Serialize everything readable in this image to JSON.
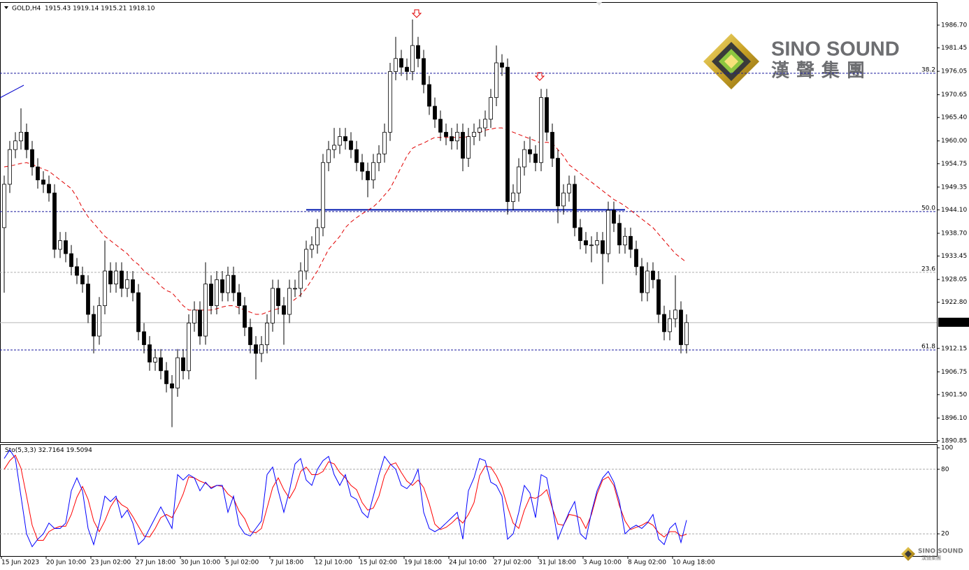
{
  "chart_data": [
    {
      "type": "candlestick",
      "title": "GOLD,H4",
      "header": "1915.43 1919.14 1915.21 1918.10",
      "categories": [
        "15 Jun 2023",
        null,
        null,
        null,
        null,
        null,
        null,
        null,
        "20 Jun 10:00",
        null,
        null,
        null,
        null,
        null,
        null,
        null,
        "23 Jun 02:00",
        null,
        null,
        null,
        null,
        null,
        null,
        null,
        "27 Jun 18:00",
        null,
        null,
        null,
        null,
        null,
        null,
        null,
        "30 Jun 10:00",
        null,
        null,
        null,
        null,
        null,
        null,
        null,
        "5 Jul 02:00",
        null,
        null,
        null,
        null,
        null,
        null,
        null,
        "7 Jul 18:00",
        null,
        null,
        null,
        null,
        null,
        null,
        null,
        "12 Jul 10:00",
        null,
        null,
        null,
        null,
        null,
        null,
        null,
        "15 Jul 02:00",
        null,
        null,
        null,
        null,
        null,
        null,
        null,
        "19 Jul 18:00",
        null,
        null,
        null,
        null,
        null,
        null,
        null,
        "24 Jul 10:00",
        null,
        null,
        null,
        null,
        null,
        null,
        null,
        "27 Jul 02:00",
        null,
        null,
        null,
        null,
        null,
        null,
        null,
        "31 Jul 18:00",
        null,
        null,
        null,
        null,
        null,
        null,
        null,
        "3 Aug 10:00",
        null,
        null,
        null,
        null,
        null,
        null,
        null,
        "8 Aug 02:00",
        null,
        null,
        null,
        null,
        null,
        null,
        null,
        "10 Aug 18:00",
        null,
        null
      ],
      "open": [
        1940,
        1950,
        1958,
        1960,
        1962,
        1958,
        1954,
        1951,
        1950,
        1948,
        1935,
        1937,
        1934,
        1931,
        1929,
        1927,
        1920,
        1915,
        1922,
        1930,
        1927,
        1930,
        1926,
        1928,
        1925,
        1916,
        1913,
        1909,
        1910,
        1907,
        1904,
        1903,
        1910,
        1907,
        1918,
        1921,
        1915,
        1927,
        1922,
        1928,
        1925,
        1929,
        1925,
        1922,
        1917,
        1913,
        1911,
        1913,
        1918,
        1926,
        1922,
        1920,
        1926,
        1926,
        1930,
        1935,
        1936,
        1940,
        1955,
        1958,
        1959,
        1961,
        1960,
        1958,
        1955,
        1953,
        1951,
        1955,
        1957,
        1962,
        1976,
        1979,
        1977,
        1976,
        1982,
        1979,
        1973,
        1968,
        1965,
        1962,
        1961,
        1960,
        1962,
        1956,
        1961,
        1962,
        1963,
        1965,
        1970,
        1978,
        1977,
        1946,
        1948,
        1954,
        1958,
        1957,
        1955,
        1970,
        1962,
        1956,
        1945,
        1948,
        1950,
        1940,
        1937,
        1936,
        1936,
        1937,
        1934,
        1944,
        1941,
        1936,
        1938,
        1935,
        1931,
        1925,
        1930,
        1928,
        1920,
        1916,
        1919,
        1921,
        1913
      ],
      "high": [
        1952,
        1960,
        1962,
        1967.5,
        1964,
        1960,
        1956,
        1953,
        1952,
        1950,
        1939,
        1939,
        1936,
        1933,
        1931,
        1929,
        1922,
        1924,
        1937,
        1932,
        1932,
        1932,
        1930,
        1930,
        1927,
        1918,
        1915,
        1912,
        1912,
        1909,
        1906,
        1912,
        1912,
        1920,
        1923,
        1923,
        1932,
        1929,
        1930,
        1930,
        1931,
        1931,
        1927,
        1924,
        1919,
        1915,
        1915,
        1920,
        1928,
        1928,
        1924,
        1928,
        1928,
        1932,
        1937,
        1938,
        1942,
        1957,
        1960,
        1963,
        1963,
        1963,
        1962,
        1960,
        1957,
        1955,
        1957,
        1959,
        1964,
        1978,
        1984,
        1981,
        1979,
        1988,
        1984,
        1981,
        1975,
        1970,
        1967,
        1964,
        1963,
        1964,
        1964,
        1963,
        1964,
        1965,
        1967,
        1972,
        1982,
        1980,
        1979,
        1950,
        1956,
        1960,
        1961,
        1959,
        1972,
        1972,
        1964,
        1958,
        1950,
        1952,
        1952,
        1942,
        1939,
        1938,
        1939,
        1939,
        1946,
        1946,
        1943,
        1940,
        1940,
        1937,
        1933,
        1932,
        1932,
        1930,
        1922,
        1921,
        1929,
        1923,
        1920
      ],
      "low": [
        1925,
        1948,
        1956,
        1958,
        1956,
        1952,
        1949,
        1948,
        1946,
        1933,
        1933,
        1932,
        1929,
        1927,
        1925,
        1918,
        1911,
        1913,
        1920,
        1925,
        1925,
        1924,
        1924,
        1923,
        1914,
        1911,
        1907,
        1907,
        1905,
        1902,
        1894,
        1901,
        1905,
        1905,
        1916,
        1913,
        1913,
        1920,
        1920,
        1923,
        1923,
        1923,
        1920,
        1915,
        1911,
        1905,
        1909,
        1911,
        1916,
        1920,
        1913,
        1918,
        1924,
        1924,
        1928,
        1933,
        1934,
        1938,
        1953,
        1956,
        1957,
        1958,
        1956,
        1953,
        1951,
        1947,
        1949,
        1953,
        1955,
        1960,
        1974,
        1975,
        1974,
        1974,
        1977,
        1971,
        1966,
        1963,
        1960,
        1959,
        1958,
        1958,
        1953,
        1954,
        1959,
        1960,
        1961,
        1963,
        1968,
        1975,
        1943,
        1944,
        1946,
        1952,
        1955,
        1953,
        1953,
        1960,
        1954,
        1941,
        1943,
        1946,
        1938,
        1935,
        1934,
        1932,
        1934,
        1927,
        1932,
        1939,
        1934,
        1934,
        1933,
        1929,
        1923,
        1923,
        1926,
        1918,
        1914,
        1914,
        1917,
        1911,
        1911
      ],
      "close": [
        1950,
        1958,
        1960,
        1962,
        1958,
        1954,
        1951,
        1950,
        1948,
        1935,
        1937,
        1934,
        1931,
        1929,
        1927,
        1920,
        1915,
        1922,
        1930,
        1927,
        1930,
        1926,
        1928,
        1925,
        1916,
        1913,
        1909,
        1910,
        1907,
        1904,
        1903,
        1910,
        1907,
        1918,
        1921,
        1915,
        1927,
        1922,
        1928,
        1925,
        1929,
        1925,
        1922,
        1917,
        1913,
        1911,
        1913,
        1918,
        1926,
        1922,
        1920,
        1926,
        1926,
        1930,
        1935,
        1936,
        1940,
        1955,
        1958,
        1959,
        1961,
        1960,
        1958,
        1955,
        1953,
        1951,
        1955,
        1957,
        1962,
        1976,
        1979,
        1977,
        1976,
        1982,
        1979,
        1973,
        1968,
        1965,
        1962,
        1961,
        1960,
        1962,
        1956,
        1961,
        1962,
        1963,
        1965,
        1970,
        1978,
        1977,
        1946,
        1948,
        1954,
        1958,
        1957,
        1955,
        1970,
        1962,
        1956,
        1945,
        1948,
        1950,
        1940,
        1937,
        1936,
        1936,
        1937,
        1934,
        1944,
        1941,
        1936,
        1938,
        1935,
        1931,
        1925,
        1930,
        1928,
        1920,
        1916,
        1919,
        1921,
        1913,
        1918.1
      ],
      "up_color": "#ffffff",
      "down_color": "#000000",
      "overlays": [
        {
          "color": "#e00000",
          "values": [
            1954,
            1954.2,
            1954.5,
            1954.8,
            1955,
            1954.6,
            1954,
            1953.5,
            1953,
            1952,
            1951,
            1950,
            1949,
            1947,
            1944.5,
            1942.5,
            1941,
            1939.5,
            1938,
            1937,
            1936,
            1935,
            1934,
            1932.5,
            1931.5,
            1930,
            1929,
            1928,
            1926.5,
            1925.5,
            1925,
            1923.5,
            1922,
            1921,
            1921,
            1921,
            1921,
            1921,
            1921.3,
            1921.7,
            1922,
            1922,
            1921.5,
            1921,
            1920.5,
            1920,
            1920,
            1920.5,
            1921,
            1921.3,
            1921.6,
            1922.5,
            1923.5,
            1924.5,
            1926,
            1928,
            1930,
            1932.5,
            1935,
            1936.5,
            1938,
            1940,
            1941.3,
            1942.3,
            1943.2,
            1944,
            1944.8,
            1946,
            1947.5,
            1949,
            1951.5,
            1954,
            1956.5,
            1958.3,
            1959,
            1959.5,
            1960.2,
            1960.8,
            1960.8,
            1960.8,
            1960.8,
            1960.8,
            1960.8,
            1961,
            1961.5,
            1962,
            1962.5,
            1962.7,
            1963,
            1963,
            1962.5,
            1962,
            1961.5,
            1961,
            1960.5,
            1960,
            1959.5,
            1959.7,
            1959.5,
            1958,
            1956.5,
            1954.5,
            1953.5,
            1952.5,
            1951.5,
            1950.5,
            1949.5,
            1948.5,
            1947.5,
            1946.5,
            1945.8,
            1945,
            1944,
            1943,
            1942,
            1941,
            1940,
            1938.5,
            1937,
            1935.5,
            1934,
            1933,
            1932
          ]
        }
      ],
      "ylim": [
        1890.53,
        1991.85
      ],
      "yticks": [
        {
          "value": 1986.7,
          "label": "1986.70"
        },
        1981.45,
        1976.05,
        1970.65,
        {
          "value": 1965.4,
          "label": "1965.40"
        },
        {
          "value": 1960,
          "label": "1960.00"
        },
        1954.75,
        1949.35,
        {
          "value": 1944.1,
          "label": "1944.10"
        },
        {
          "value": 1938.7,
          "label": "1938.70"
        },
        1933.45,
        1928.05,
        {
          "value": 1922.8,
          "label": "1922.80"
        },
        1912.15,
        1906.75,
        {
          "value": 1901.5,
          "label": "1901.50"
        },
        {
          "value": 1896.1,
          "label": "1896.10"
        },
        1890.85
      ],
      "levels": [
        {
          "label": "38.2",
          "value": 1975.6,
          "color": "#1a1a9c"
        },
        {
          "label": "50.0",
          "value": 1943.7,
          "color": "#1a1a9c"
        },
        {
          "label": "23.6",
          "value": 1929.7,
          "color": "#b0b0b0"
        },
        {
          "label": "61.8",
          "value": 1911.8,
          "color": "#1a1a9c"
        }
      ],
      "neckline": {
        "value": 1944.1,
        "x": [
          54,
          111
        ],
        "color": "#0018b0"
      },
      "last_price": {
        "value": 1918.1,
        "label": "1918.10"
      },
      "logo": {
        "name": "SINO SOUND",
        "chinese": "漢聲集團"
      }
    },
    {
      "type": "line",
      "title": "Sto(5,3,3)",
      "series": [
        {
          "color": "#0000ff",
          "values": [
            90,
            98,
            90,
            55,
            20,
            8,
            15,
            20,
            30,
            25,
            25,
            30,
            60,
            72,
            60,
            25,
            10,
            30,
            55,
            50,
            55,
            35,
            42,
            30,
            10,
            15,
            25,
            35,
            45,
            35,
            25,
            75,
            70,
            75,
            72,
            60,
            68,
            62,
            65,
            65,
            40,
            55,
            28,
            20,
            18,
            25,
            32,
            75,
            82,
            60,
            40,
            60,
            85,
            90,
            70,
            65,
            80,
            88,
            92,
            75,
            65,
            75,
            55,
            52,
            40,
            35,
            55,
            75,
            92,
            85,
            80,
            65,
            62,
            68,
            80,
            40,
            25,
            22,
            25,
            30,
            35,
            40,
            15,
            60,
            72,
            90,
            88,
            68,
            65,
            55,
            15,
            20,
            40,
            65,
            58,
            35,
            75,
            72,
            45,
            15,
            28,
            40,
            50,
            20,
            15,
            40,
            60,
            72,
            78,
            68,
            50,
            20,
            25,
            28,
            25,
            30,
            38,
            15,
            10,
            25,
            30,
            12,
            32.7164
          ]
        },
        {
          "color": "#ff0000",
          "values": [
            80,
            88,
            93,
            81,
            55,
            28,
            14,
            14,
            22,
            25,
            27,
            27,
            38,
            54,
            64,
            52,
            32,
            22,
            32,
            45,
            53,
            47,
            44,
            36,
            27,
            18,
            17,
            25,
            35,
            38,
            35,
            45,
            57,
            73,
            72,
            69,
            67,
            63,
            65,
            64,
            57,
            53,
            41,
            34,
            22,
            21,
            25,
            44,
            63,
            72,
            61,
            53,
            62,
            78,
            82,
            75,
            75,
            78,
            87,
            85,
            77,
            72,
            65,
            61,
            49,
            42,
            44,
            55,
            74,
            84,
            86,
            77,
            69,
            65,
            70,
            63,
            48,
            29,
            24,
            26,
            30,
            35,
            30,
            38,
            49,
            74,
            83,
            82,
            74,
            63,
            45,
            30,
            25,
            42,
            54,
            53,
            56,
            61,
            44,
            29,
            28,
            38,
            37,
            35,
            25,
            38,
            57,
            70,
            73,
            65,
            46,
            32,
            24,
            26,
            28,
            31,
            28,
            21,
            17,
            22,
            22,
            18,
            19.5094
          ]
        }
      ],
      "ylim": [
        0,
        100
      ],
      "yticks": [
        100,
        80,
        20
      ],
      "levels": [
        80,
        20
      ]
    }
  ]
}
